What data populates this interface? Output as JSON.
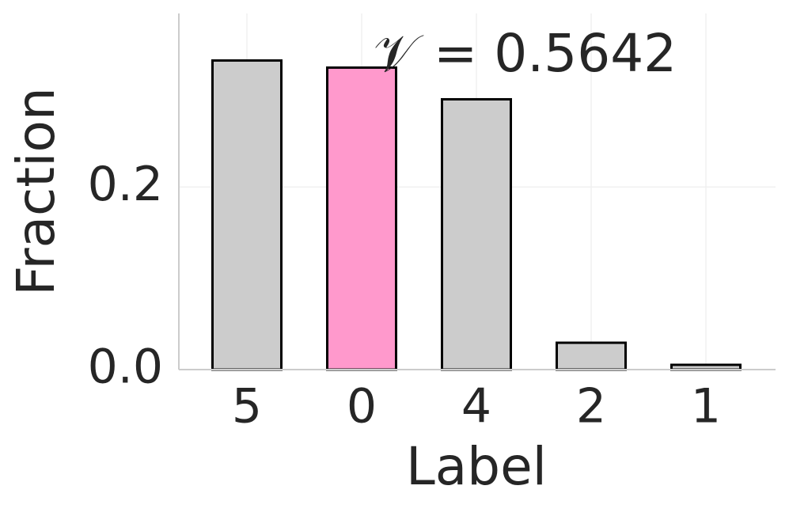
{
  "chart_data": {
    "type": "bar",
    "annotation": "𝒱 = 0.5642",
    "x_label": "Label",
    "y_label": "Fraction",
    "categories": [
      "5",
      "0",
      "4",
      "2",
      "1"
    ],
    "values": [
      0.3385,
      0.3307,
      0.296,
      0.0294,
      0.0052
    ],
    "colors": [
      "#cccccc",
      "#ff99cc",
      "#cccccc",
      "#cccccc",
      "#cccccc"
    ],
    "edge_color": "#000000",
    "ylim": [
      0,
      0.39
    ],
    "yticks": [
      {
        "value": 0,
        "label": "0.0"
      },
      0.2
    ],
    "grid": true
  }
}
